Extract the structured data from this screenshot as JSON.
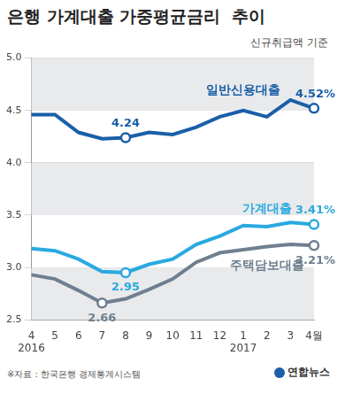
{
  "chart_data": {
    "type": "line",
    "title": "은행 가계대출 가중평균금리  추이",
    "subtitle": "신규취급액 기준",
    "categories": [
      [
        "4",
        "2016"
      ],
      "5",
      "6",
      "7",
      "8",
      "9",
      "10",
      "11",
      "12",
      [
        "1",
        "2017"
      ],
      "2",
      "3",
      "4월"
    ],
    "series": [
      {
        "name": "일반신용대출",
        "color": "#1a5fa8",
        "values": [
          4.46,
          4.46,
          4.29,
          4.23,
          4.24,
          4.29,
          4.27,
          4.34,
          4.44,
          4.5,
          4.44,
          4.6,
          4.52
        ],
        "value_labels": [
          null,
          null,
          null,
          null,
          "4.24",
          null,
          null,
          null,
          null,
          null,
          null,
          null,
          "4.52%"
        ]
      },
      {
        "name": "가계대출",
        "color": "#29a9e0",
        "values": [
          3.18,
          3.16,
          3.08,
          2.96,
          2.95,
          3.03,
          3.08,
          3.22,
          3.3,
          3.4,
          3.39,
          3.43,
          3.41
        ],
        "value_labels": [
          null,
          null,
          null,
          null,
          "2.95",
          null,
          null,
          null,
          null,
          null,
          null,
          null,
          "3.41%"
        ]
      },
      {
        "name": "주택담보대출",
        "color": "#6f7f8f",
        "values": [
          2.93,
          2.89,
          2.78,
          2.66,
          2.7,
          2.79,
          2.89,
          3.05,
          3.14,
          3.17,
          3.2,
          3.22,
          3.21
        ],
        "value_labels": [
          null,
          null,
          null,
          2.66,
          null,
          null,
          null,
          null,
          null,
          null,
          null,
          null,
          "3.21%"
        ]
      }
    ],
    "ylim": [
      2.5,
      5.0
    ],
    "yticks": [
      2.5,
      {
        "value": 3,
        "label": "3.0"
      },
      3.5,
      {
        "value": 4,
        "label": "4.0"
      },
      4.5,
      {
        "value": 5,
        "label": "5.0"
      }
    ],
    "grid": true,
    "legend": "none",
    "data_labels": true,
    "source": "※자료 : 한국은행 경제통계시스템",
    "credit": "연합뉴스"
  }
}
